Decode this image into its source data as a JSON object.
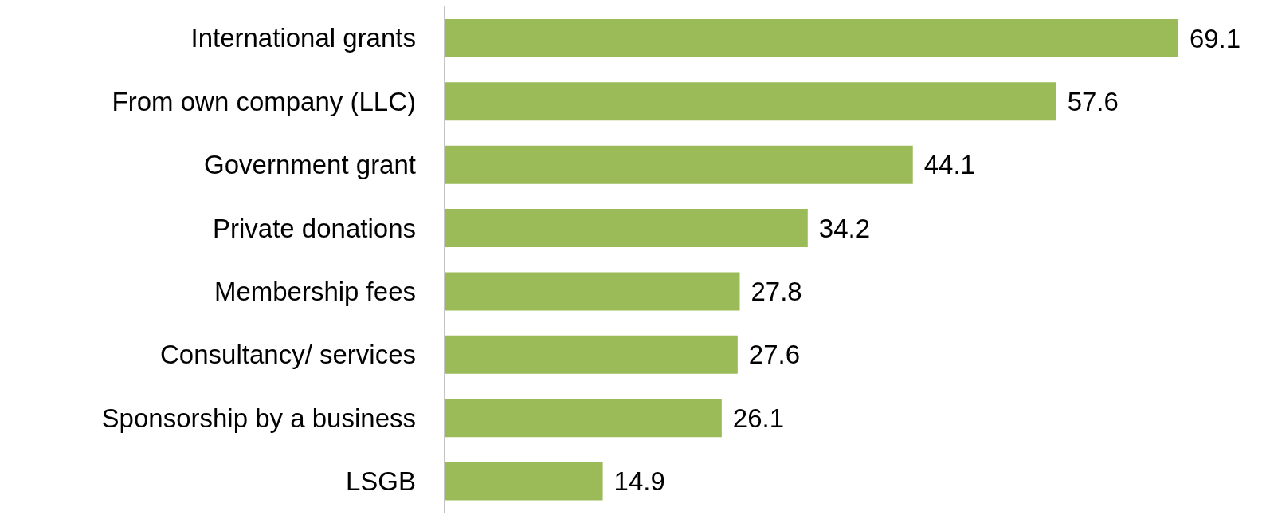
{
  "chart_data": {
    "type": "bar",
    "orientation": "horizontal",
    "categories": [
      "International grants",
      "From own company (LLC)",
      "Government grant",
      "Private donations",
      "Membership fees",
      "Consultancy/ services",
      "Sponsorship by a business",
      "LSGB"
    ],
    "values": [
      69.1,
      57.6,
      44.1,
      34.2,
      27.8,
      27.6,
      26.1,
      14.9
    ],
    "color": "#9bbb59",
    "data_labels": true,
    "grid": false,
    "legend": false
  }
}
